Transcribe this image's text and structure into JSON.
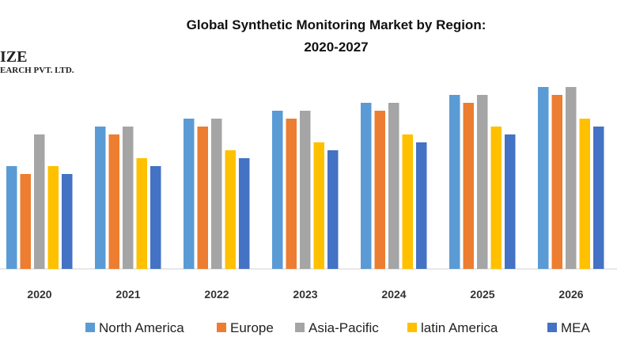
{
  "logo_text": {
    "line1": "IZE",
    "line2": "EARCH PVT. LTD."
  },
  "chart_data": {
    "type": "bar",
    "title": "Global Synthetic Monitoring Market by Region:",
    "subtitle": "2020-2027",
    "categories": [
      "2020",
      "2021",
      "2022",
      "2023",
      "2024",
      "2025",
      "2026"
    ],
    "series": [
      {
        "name": "North America",
        "color": "#5B9BD5",
        "values": [
          13,
          18,
          19,
          20,
          21,
          22,
          23
        ]
      },
      {
        "name": "Europe",
        "color": "#ED7D31",
        "values": [
          12,
          17,
          18,
          19,
          20,
          21,
          22
        ]
      },
      {
        "name": "Asia-Pacific",
        "color": "#A5A5A5",
        "values": [
          17,
          18,
          19,
          20,
          21,
          22,
          23
        ]
      },
      {
        "name": "latin America",
        "color": "#FFC000",
        "values": [
          13,
          14,
          15,
          16,
          17,
          18,
          19
        ]
      },
      {
        "name": "MEA",
        "color": "#4472C4",
        "values": [
          12,
          13,
          14,
          15,
          16,
          17,
          18
        ]
      }
    ],
    "ylim": [
      0,
      25
    ],
    "grid": false,
    "legend": "bottom"
  }
}
